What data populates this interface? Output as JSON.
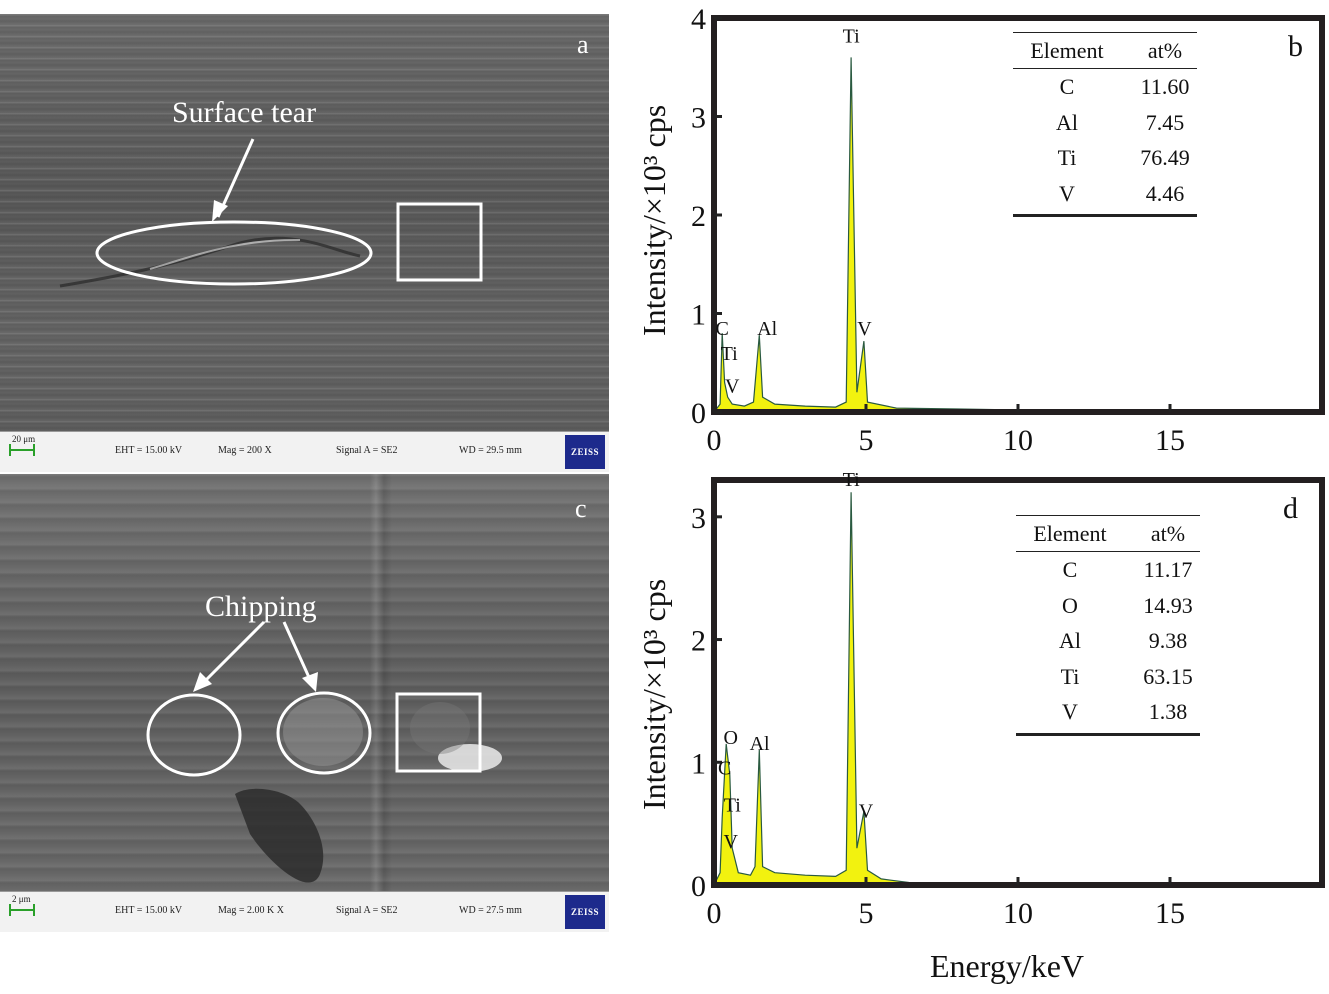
{
  "panels": {
    "a": {
      "letter": "a",
      "annotation": "Surface tear",
      "info": {
        "scale": "20 μm",
        "eht": "EHT = 15.00 kV",
        "mag": "Mag =   200 X",
        "signal": "Signal A = SE2",
        "wd": "WD = 29.5 mm",
        "logo": "ZEISS"
      }
    },
    "c": {
      "letter": "c",
      "annotation": "Chipping",
      "info": {
        "scale": "2 μm",
        "eht": "EHT = 15.00 kV",
        "mag": "Mag =   2.00 K X",
        "signal": "Signal A = SE2",
        "wd": "WD = 27.5 mm",
        "logo": "ZEISS"
      }
    },
    "b": {
      "letter": "b",
      "ylabel": "Intensity/×10³ cps",
      "table": {
        "headers": [
          "Element",
          "at%"
        ],
        "rows": [
          [
            "C",
            "11.60"
          ],
          [
            "Al",
            "7.45"
          ],
          [
            "Ti",
            "76.49"
          ],
          [
            "V",
            "4.46"
          ]
        ]
      }
    },
    "d": {
      "letter": "d",
      "ylabel": "Intensity/×10³ cps",
      "table": {
        "headers": [
          "Element",
          "at%"
        ],
        "rows": [
          [
            "C",
            "11.17"
          ],
          [
            "O",
            "14.93"
          ],
          [
            "Al",
            "9.38"
          ],
          [
            "Ti",
            "63.15"
          ],
          [
            "V",
            "1.38"
          ]
        ]
      }
    }
  },
  "xlabel": "Energy/keV",
  "colors": {
    "spectrum_fill": "#f2f20f",
    "spectrum_line": "#2a5a40",
    "frame": "#231f20"
  },
  "chart_data": [
    {
      "type": "area",
      "panel": "b",
      "xlim": [
        0,
        20
      ],
      "ylim": [
        0,
        4
      ],
      "xticks": [
        0,
        5,
        10,
        15
      ],
      "yticks": [
        0,
        1,
        2,
        3,
        4
      ],
      "spectrum": [
        [
          0,
          0
        ],
        [
          0.2,
          0.08
        ],
        [
          0.27,
          0.8
        ],
        [
          0.35,
          0.3
        ],
        [
          0.45,
          0.15
        ],
        [
          0.6,
          0.08
        ],
        [
          1.0,
          0.06
        ],
        [
          1.3,
          0.1
        ],
        [
          1.49,
          0.78
        ],
        [
          1.6,
          0.15
        ],
        [
          2.0,
          0.08
        ],
        [
          3.0,
          0.06
        ],
        [
          4.0,
          0.05
        ],
        [
          4.35,
          0.1
        ],
        [
          4.51,
          3.6
        ],
        [
          4.7,
          0.2
        ],
        [
          4.93,
          0.72
        ],
        [
          5.05,
          0.1
        ],
        [
          6.0,
          0.04
        ],
        [
          8.0,
          0.03
        ],
        [
          10.0,
          0.02
        ],
        [
          10.5,
          0.01
        ],
        [
          11,
          0
        ]
      ],
      "peak_labels": [
        {
          "text": "Ti",
          "x": 4.51,
          "y": 3.75
        },
        {
          "text": "C",
          "x": 0.27,
          "y": 0.78
        },
        {
          "text": "Al",
          "x": 1.75,
          "y": 0.78
        },
        {
          "text": "V",
          "x": 4.95,
          "y": 0.78
        },
        {
          "text": "Ti",
          "x": 0.5,
          "y": 0.53
        },
        {
          "text": "V",
          "x": 0.6,
          "y": 0.2
        }
      ]
    },
    {
      "type": "area",
      "panel": "d",
      "xlim": [
        0,
        20
      ],
      "ylim": [
        0,
        3.3
      ],
      "xticks": [
        0,
        5,
        10,
        15
      ],
      "yticks": [
        0,
        1,
        2,
        3
      ],
      "spectrum": [
        [
          0,
          0
        ],
        [
          0.2,
          0.1
        ],
        [
          0.27,
          0.55
        ],
        [
          0.4,
          1.15
        ],
        [
          0.52,
          0.9
        ],
        [
          0.6,
          0.3
        ],
        [
          0.8,
          0.1
        ],
        [
          1.2,
          0.08
        ],
        [
          1.35,
          0.15
        ],
        [
          1.49,
          1.1
        ],
        [
          1.6,
          0.15
        ],
        [
          2.0,
          0.1
        ],
        [
          3.0,
          0.08
        ],
        [
          4.0,
          0.07
        ],
        [
          4.35,
          0.12
        ],
        [
          4.51,
          3.2
        ],
        [
          4.7,
          0.3
        ],
        [
          4.93,
          0.6
        ],
        [
          5.05,
          0.12
        ],
        [
          5.5,
          0.05
        ],
        [
          6.4,
          0.02
        ],
        [
          6.5,
          0
        ]
      ],
      "peak_labels": [
        {
          "text": "Ti",
          "x": 4.51,
          "y": 3.25
        },
        {
          "text": "O",
          "x": 0.55,
          "y": 1.15
        },
        {
          "text": "Al",
          "x": 1.5,
          "y": 1.1
        },
        {
          "text": "C",
          "x": 0.35,
          "y": 0.9
        },
        {
          "text": "Ti",
          "x": 0.6,
          "y": 0.6
        },
        {
          "text": "V",
          "x": 0.55,
          "y": 0.3
        },
        {
          "text": "V",
          "x": 5.0,
          "y": 0.55
        }
      ]
    }
  ]
}
